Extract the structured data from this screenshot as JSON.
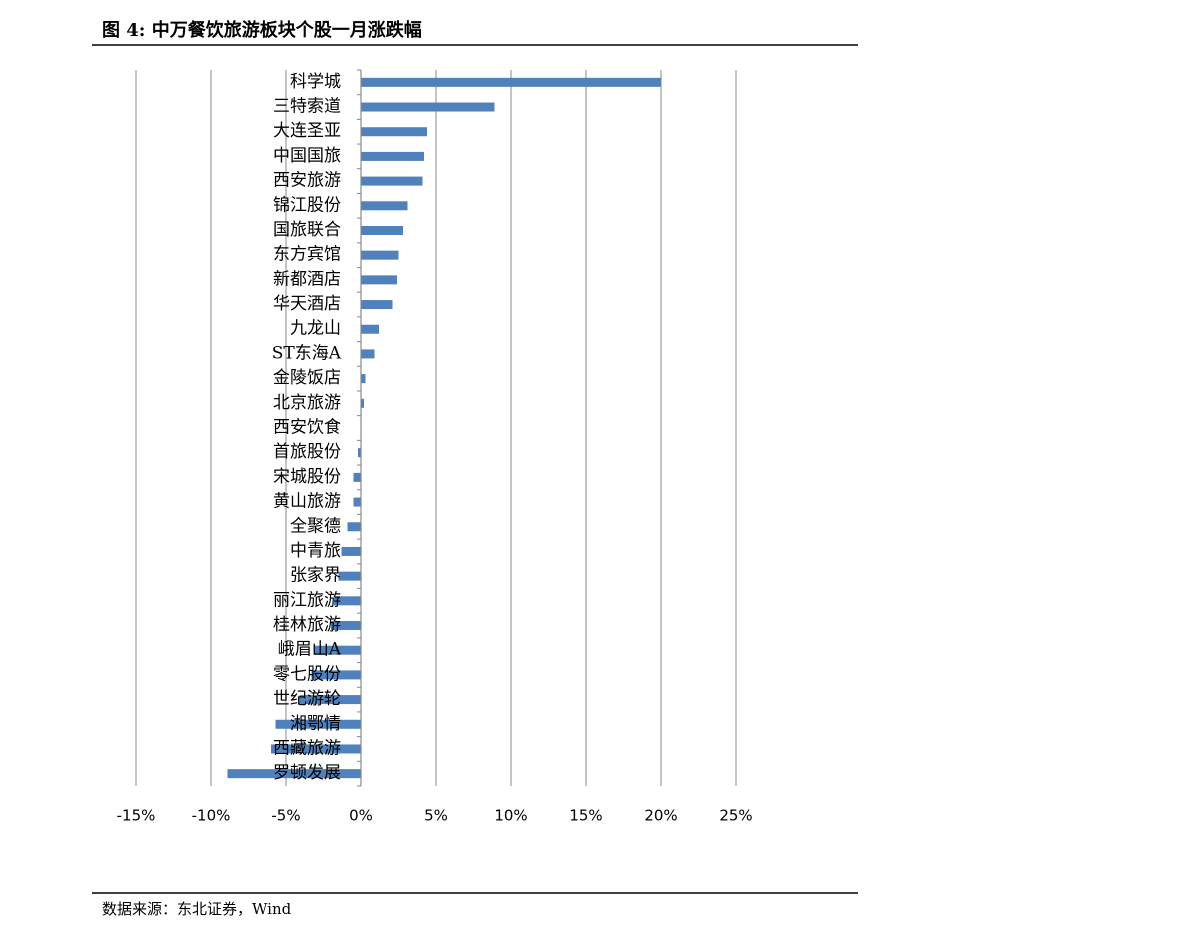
{
  "chart_data": {
    "type": "barh",
    "title": "图 4: 中万餐饮旅游板块个股一月涨跌幅",
    "categories": [
      "科学城",
      "三特索道",
      "大连圣亚",
      "中国国旅",
      "西安旅游",
      "锦江股份",
      "国旅联合",
      "东方宾馆",
      "新都酒店",
      "华天酒店",
      "九龙山",
      "ST东海A",
      "金陵饭店",
      "北京旅游",
      "西安饮食",
      "首旅股份",
      "宋城股份",
      "黄山旅游",
      "全聚德",
      "中青旅",
      "张家界",
      "丽江旅游",
      "桂林旅游",
      "峨眉山A",
      "零七股份",
      "世纪游轮",
      "湘鄂情",
      "西藏旅游",
      "罗顿发展"
    ],
    "values": [
      20.0,
      8.9,
      4.4,
      4.2,
      4.1,
      3.1,
      2.8,
      2.5,
      2.4,
      2.1,
      1.2,
      0.9,
      0.3,
      0.2,
      0.0,
      -0.2,
      -0.5,
      -0.5,
      -0.9,
      -1.3,
      -1.5,
      -1.8,
      -2.0,
      -3.1,
      -3.3,
      -4.1,
      -5.7,
      -6.0,
      -8.9
    ],
    "color": "#4f81bd",
    "xlim": [
      -15,
      25
    ],
    "xticks": [
      {
        "value": -15,
        "label": "-15%"
      },
      {
        "value": -10,
        "label": "-10%"
      },
      {
        "value": -5,
        "label": "-5%"
      },
      {
        "value": 0,
        "label": "0%"
      },
      {
        "value": 5,
        "label": "5%"
      },
      {
        "value": 10,
        "label": "10%"
      },
      {
        "value": 15,
        "label": "15%"
      },
      {
        "value": 20,
        "label": "20%"
      },
      {
        "value": 25,
        "label": "25%"
      }
    ],
    "grid": true
  },
  "source": "数据来源：东北证券，Wind"
}
